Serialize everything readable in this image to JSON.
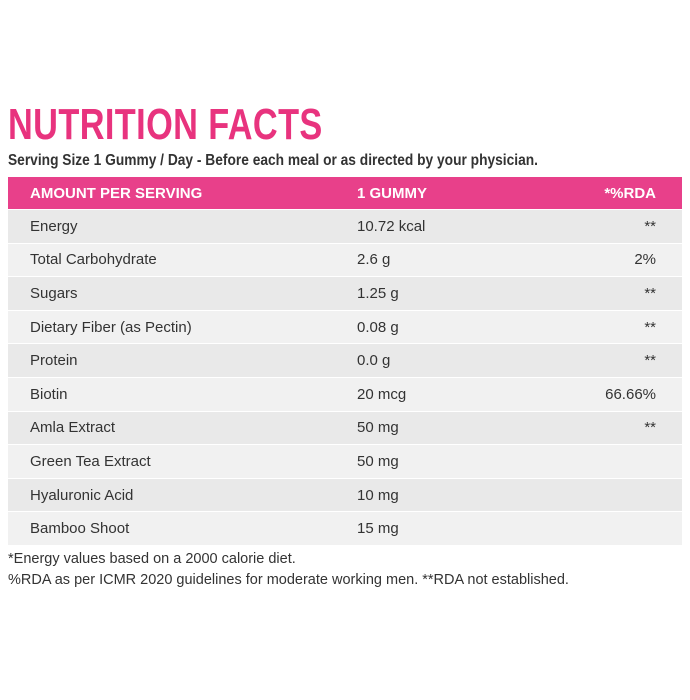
{
  "header": {
    "title": "NUTRITION FACTS",
    "subtitle": "Serving Size 1 Gummy / Day - Before each meal or as directed by your physician."
  },
  "table": {
    "columns": [
      "AMOUNT PER SERVING",
      "1 GUMMY",
      "*%RDA"
    ],
    "rows": [
      [
        "Energy",
        "10.72 kcal",
        "**"
      ],
      [
        "Total Carbohydrate",
        "2.6 g",
        "2%"
      ],
      [
        "Sugars",
        "1.25 g",
        "**"
      ],
      [
        "Dietary Fiber (as Pectin)",
        "0.08 g",
        "**"
      ],
      [
        "Protein",
        "0.0 g",
        "**"
      ],
      [
        "Biotin",
        "20 mcg",
        "66.66%"
      ],
      [
        "Amla Extract",
        "50 mg",
        "**"
      ],
      [
        "Green Tea Extract",
        "50 mg"
      ],
      [
        "Hyaluronic Acid",
        "10 mg"
      ],
      [
        "Bamboo Shoot",
        "15 mg"
      ]
    ]
  },
  "footnotes": [
    "*Energy values based on a 2000 calorie diet.",
    "%RDA as per ICMR 2020 guidelines for moderate working men. **RDA not established."
  ]
}
